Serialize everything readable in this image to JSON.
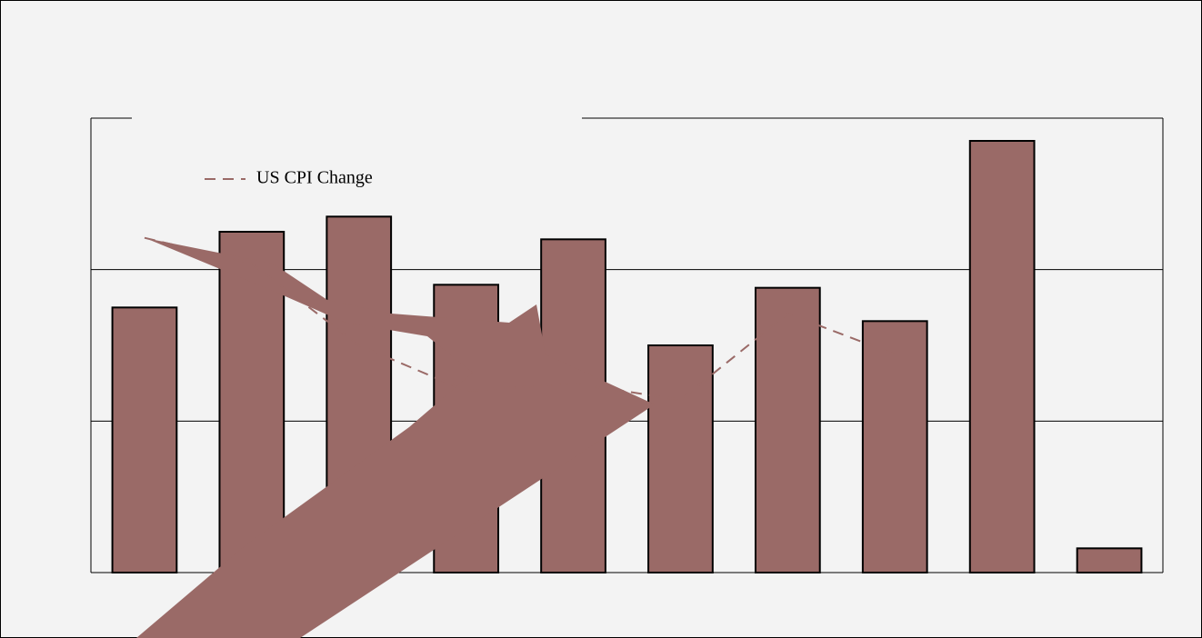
{
  "chart_data": {
    "type": "bar",
    "categories": [
      null,
      null,
      null,
      null,
      null,
      null,
      null,
      null,
      null,
      null
    ],
    "values": [
      1.75,
      2.25,
      2.35,
      1.9,
      2.2,
      1.5,
      1.88,
      1.66,
      2.85,
      0.16
    ],
    "color": "#9a6a67",
    "series": [
      {
        "name": "US CPI Change",
        "color": "#9a6a67",
        "values": [
          2.21,
          2.04,
          1.5,
          1.2,
          1.25,
          1.14,
          1.71,
          1.44,
          null,
          null
        ]
      }
    ],
    "ylim": [
      0,
      3
    ],
    "yticks": [
      0,
      1,
      2,
      3
    ],
    "grid": true,
    "legend": "top-left"
  }
}
